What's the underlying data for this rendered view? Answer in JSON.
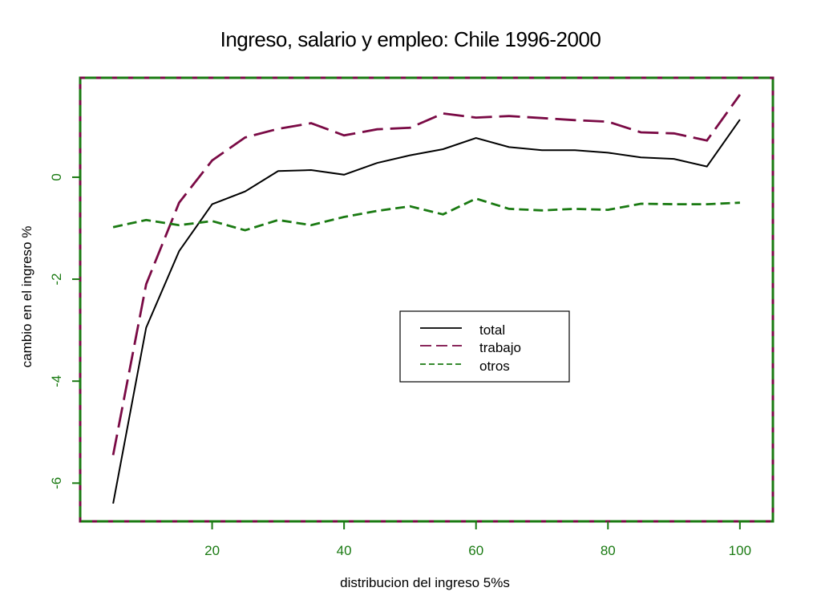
{
  "chart_data": {
    "type": "line",
    "title": "Ingreso, salario y empleo: Chile 1996-2000",
    "xlabel": "distribucion del ingreso 5%s",
    "ylabel": "cambio en el ingreso %",
    "x": [
      5,
      10,
      15,
      20,
      25,
      30,
      35,
      40,
      45,
      50,
      55,
      60,
      65,
      70,
      75,
      80,
      85,
      90,
      95,
      100
    ],
    "xlim": [
      0,
      105
    ],
    "ylim": [
      -6.75,
      1.95
    ],
    "xticks": [
      20,
      40,
      60,
      80,
      100
    ],
    "yticks": [
      0,
      -2,
      -4,
      -6
    ],
    "grid": false,
    "legend_position": "center-right",
    "series": [
      {
        "name": "total",
        "color": "#000000",
        "dash": "solid",
        "values": [
          -6.4,
          -2.95,
          -1.45,
          -0.53,
          -0.28,
          0.12,
          0.14,
          0.05,
          0.28,
          0.43,
          0.55,
          0.77,
          0.59,
          0.53,
          0.53,
          0.48,
          0.39,
          0.36,
          0.21,
          1.13
        ]
      },
      {
        "name": "trabajo",
        "color": "#7a0a45",
        "dash": "long-dash",
        "values": [
          -5.45,
          -2.1,
          -0.5,
          0.33,
          0.78,
          0.95,
          1.06,
          0.82,
          0.94,
          0.97,
          1.25,
          1.17,
          1.2,
          1.16,
          1.12,
          1.09,
          0.88,
          0.86,
          0.72,
          1.62
        ]
      },
      {
        "name": "otros",
        "color": "#1a7a12",
        "dash": "short-dash",
        "values": [
          -0.98,
          -0.84,
          -0.94,
          -0.86,
          -1.04,
          -0.84,
          -0.94,
          -0.78,
          -0.66,
          -0.57,
          -0.73,
          -0.42,
          -0.62,
          -0.65,
          -0.62,
          -0.64,
          -0.52,
          -0.53,
          -0.53,
          -0.5
        ]
      }
    ],
    "axis_color": "#1a7a12",
    "frame_accent_color": "#7a0a45"
  }
}
